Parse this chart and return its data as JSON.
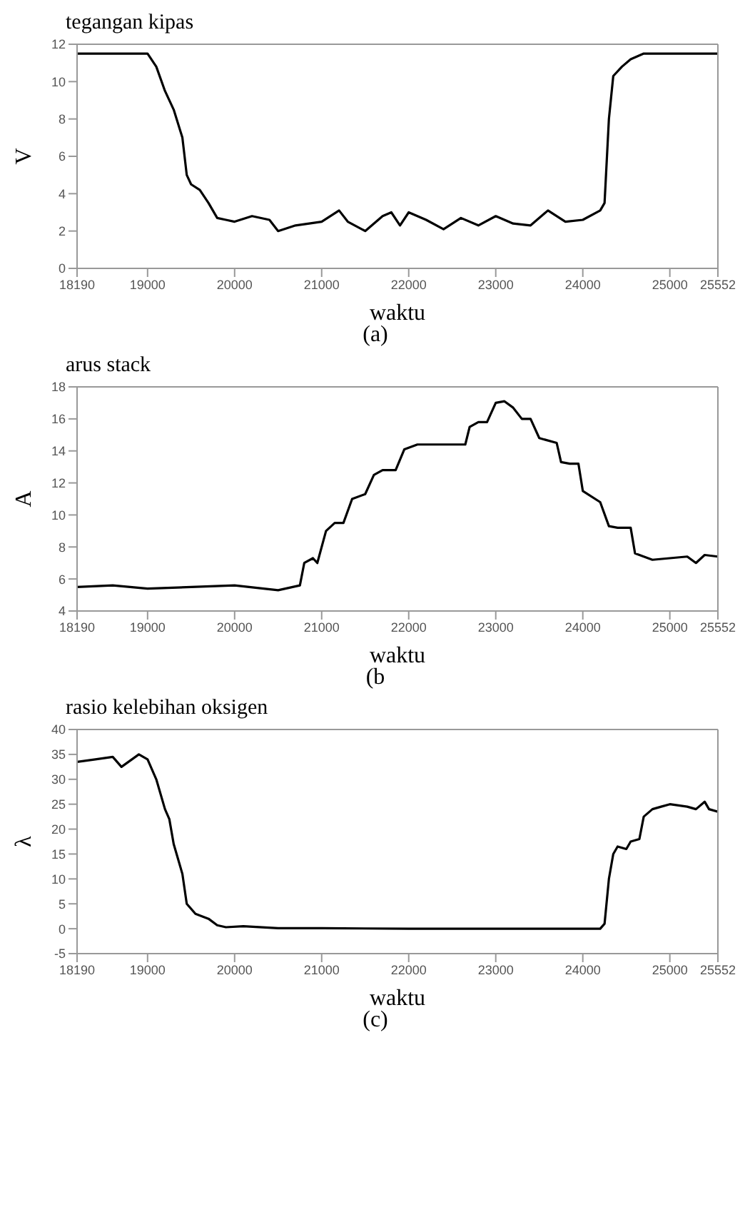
{
  "chart_data": [
    {
      "type": "line",
      "title": "tegangan kipas",
      "xlabel": "waktu",
      "ylabel": "V",
      "annotations": [
        "(a)"
      ],
      "xlim": [
        18190,
        25552
      ],
      "xticks": [
        18190,
        19000,
        20000,
        21000,
        22000,
        23000,
        24000,
        25000,
        25552
      ],
      "ylim": [
        0,
        12
      ],
      "yticks": [
        0,
        2,
        4,
        6,
        8,
        10,
        12
      ],
      "marker": "none",
      "line_style": "solid",
      "series": [
        {
          "color": "#000000",
          "x": [
            18190,
            19000,
            19100,
            19200,
            19300,
            19400,
            19450,
            19500,
            19600,
            19700,
            19800,
            19900,
            20000,
            20200,
            20400,
            20500,
            20700,
            21000,
            21200,
            21300,
            21500,
            21700,
            21800,
            21900,
            22000,
            22200,
            22400,
            22600,
            22800,
            23000,
            23200,
            23400,
            23600,
            23800,
            24000,
            24200,
            24250,
            24300,
            24350,
            24450,
            24550,
            24700,
            25552
          ],
          "values": [
            11.5,
            11.5,
            10.8,
            9.5,
            8.5,
            7,
            5,
            4.5,
            4.2,
            3.5,
            2.7,
            2.6,
            2.5,
            2.8,
            2.6,
            2.0,
            2.3,
            2.5,
            3.1,
            2.5,
            2.0,
            2.8,
            3.0,
            2.3,
            3.0,
            2.6,
            2.1,
            2.7,
            2.3,
            2.8,
            2.4,
            2.3,
            3.1,
            2.5,
            2.6,
            3.1,
            3.5,
            8,
            10.3,
            10.8,
            11.2,
            11.5,
            11.5
          ]
        }
      ]
    },
    {
      "type": "line",
      "title": "arus stack",
      "xlabel": "waktu",
      "ylabel": "A",
      "annotations": [
        "(b"
      ],
      "xlim": [
        18190,
        25552
      ],
      "xticks": [
        18190,
        19000,
        20000,
        21000,
        22000,
        23000,
        24000,
        25000,
        25552
      ],
      "ylim": [
        4,
        18
      ],
      "yticks": [
        4,
        6,
        8,
        10,
        12,
        14,
        16,
        18
      ],
      "marker": "none",
      "line_style": "solid",
      "series": [
        {
          "color": "#000000",
          "x": [
            18190,
            18600,
            19000,
            19500,
            20000,
            20500,
            20750,
            20800,
            20900,
            20950,
            21050,
            21150,
            21250,
            21350,
            21500,
            21600,
            21700,
            21850,
            21950,
            22100,
            22300,
            22650,
            22700,
            22800,
            22900,
            23000,
            23100,
            23200,
            23300,
            23400,
            23500,
            23700,
            23750,
            23850,
            23950,
            24000,
            24200,
            24300,
            24400,
            24550,
            24600,
            24800,
            25000,
            25200,
            25300,
            25400,
            25552
          ],
          "values": [
            5.5,
            5.6,
            5.4,
            5.5,
            5.6,
            5.3,
            5.6,
            7.0,
            7.3,
            7.0,
            9.0,
            9.5,
            9.5,
            11.0,
            11.3,
            12.5,
            12.8,
            12.8,
            14.1,
            14.4,
            14.4,
            14.4,
            15.5,
            15.8,
            15.8,
            17.0,
            17.1,
            16.7,
            16.0,
            16.0,
            14.8,
            14.5,
            13.3,
            13.2,
            13.2,
            11.5,
            10.8,
            9.3,
            9.2,
            9.2,
            7.6,
            7.2,
            7.3,
            7.4,
            7.0,
            7.5,
            7.4
          ]
        }
      ]
    },
    {
      "type": "line",
      "title": "rasio kelebihan oksigen",
      "xlabel": "waktu",
      "ylabel": "λ",
      "annotations": [
        "(c)"
      ],
      "xlim": [
        18190,
        25552
      ],
      "xticks": [
        18190,
        19000,
        20000,
        21000,
        22000,
        23000,
        24000,
        25000,
        25552
      ],
      "ylim": [
        -5,
        40
      ],
      "yticks": [
        -5,
        0,
        5,
        10,
        15,
        20,
        25,
        30,
        35,
        40
      ],
      "marker": "none",
      "line_style": "solid",
      "series": [
        {
          "color": "#000000",
          "x": [
            18190,
            18400,
            18600,
            18700,
            18900,
            19000,
            19100,
            19200,
            19250,
            19300,
            19400,
            19450,
            19550,
            19700,
            19800,
            19900,
            20100,
            20500,
            21000,
            22000,
            23000,
            24200,
            24250,
            24300,
            24350,
            24400,
            24500,
            24550,
            24650,
            24700,
            24800,
            24900,
            25000,
            25200,
            25300,
            25400,
            25450,
            25552
          ],
          "values": [
            33.5,
            34,
            34.5,
            32.5,
            35,
            34,
            30,
            24,
            22,
            17,
            11,
            5,
            3,
            2,
            0.7,
            0.3,
            0.5,
            0.1,
            0.1,
            0,
            0,
            0,
            1,
            10,
            15,
            16.5,
            16,
            17.5,
            18,
            22.5,
            24,
            24.5,
            25,
            24.5,
            24,
            25.5,
            24,
            23.5
          ]
        }
      ]
    }
  ]
}
